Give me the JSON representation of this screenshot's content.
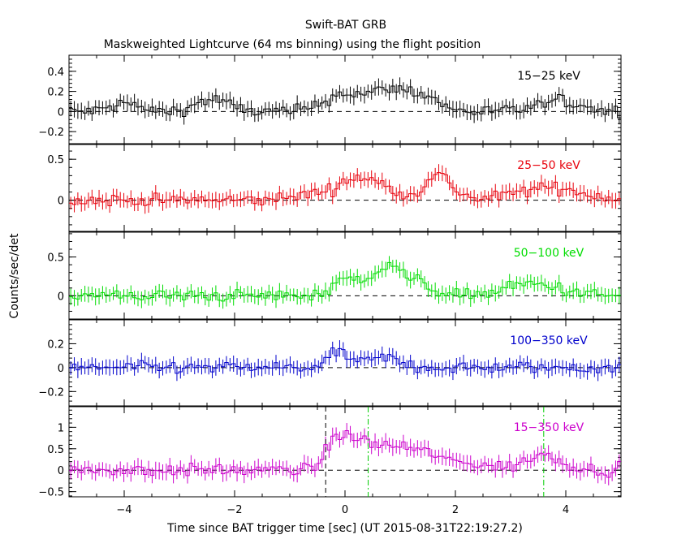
{
  "chart_data": {
    "type": "line",
    "title": "Swift-BAT GRB",
    "subtitle": "Maskweighted Lightcurve (64 ms binning) using the flight position",
    "xlabel": "Time since BAT trigger time [sec] (UT 2015-08-31T22:19:27.2)",
    "ylabel": "Counts/sec/det",
    "xlim": [
      -5,
      5
    ],
    "xticks": [
      -4,
      -2,
      0,
      2,
      4
    ],
    "xtick_labels": [
      "−4",
      "−2",
      "0",
      "2",
      "4"
    ],
    "bin_width_sec": 0.064,
    "grid": false,
    "panels": [
      {
        "name": "15−25 keV",
        "color": "#000000",
        "ylim": [
          -0.32,
          0.56
        ],
        "yticks": [
          -0.2,
          0,
          0.2,
          0.4
        ],
        "ytick_labels": [
          "−0.2",
          "0",
          "0.2",
          "0.4"
        ],
        "features": [
          [
            -4.0,
            0.08,
            0.25
          ],
          [
            -2.4,
            0.12,
            0.3
          ],
          [
            0.0,
            0.18,
            0.35
          ],
          [
            0.8,
            0.2,
            0.3
          ],
          [
            1.4,
            0.15,
            0.3
          ],
          [
            3.9,
            0.1,
            0.4
          ]
        ]
      },
      {
        "name": "25−50 keV",
        "color": "#e8000b",
        "ylim": [
          -0.38,
          0.68
        ],
        "yticks": [
          0,
          0.5
        ],
        "ytick_labels": [
          "0",
          "0.5"
        ],
        "features": [
          [
            -0.3,
            0.1,
            0.5
          ],
          [
            0.2,
            0.18,
            0.25
          ],
          [
            0.7,
            0.15,
            0.3
          ],
          [
            1.7,
            0.3,
            0.25
          ],
          [
            3.7,
            0.15,
            0.6
          ]
        ]
      },
      {
        "name": "50−100 keV",
        "color": "#00dd00",
        "ylim": [
          -0.3,
          0.82
        ],
        "yticks": [
          0,
          0.5
        ],
        "ytick_labels": [
          "0",
          "0.5"
        ],
        "features": [
          [
            0.0,
            0.25,
            0.2
          ],
          [
            0.75,
            0.4,
            0.25
          ],
          [
            1.3,
            0.15,
            0.3
          ],
          [
            3.4,
            0.15,
            0.5
          ]
        ]
      },
      {
        "name": "100−350 keV",
        "color": "#0000cc",
        "ylim": [
          -0.32,
          0.4
        ],
        "yticks": [
          -0.2,
          0,
          0.2
        ],
        "ytick_labels": [
          "−0.2",
          "0",
          "0.2"
        ],
        "features": [
          [
            -0.1,
            0.12,
            0.2
          ],
          [
            0.7,
            0.08,
            0.3
          ]
        ]
      },
      {
        "name": "15−350 keV",
        "color": "#cc00cc",
        "ylim": [
          -0.62,
          1.48
        ],
        "yticks": [
          -0.5,
          0,
          0.5,
          1
        ],
        "ytick_labels": [
          "−0.5",
          "0",
          "0.5",
          "1"
        ],
        "features": [
          [
            -0.2,
            0.4,
            0.15
          ],
          [
            0.1,
            0.6,
            0.3
          ],
          [
            0.8,
            0.5,
            0.4
          ],
          [
            1.5,
            0.3,
            0.35
          ],
          [
            2.3,
            0.15,
            0.3
          ],
          [
            3.6,
            0.35,
            0.35
          ]
        ],
        "markers": [
          {
            "x": -0.35,
            "color": "#000000"
          },
          {
            "x": 0.42,
            "color": "#00cc00"
          },
          {
            "x": 3.6,
            "color": "#00cc00"
          }
        ]
      }
    ]
  }
}
